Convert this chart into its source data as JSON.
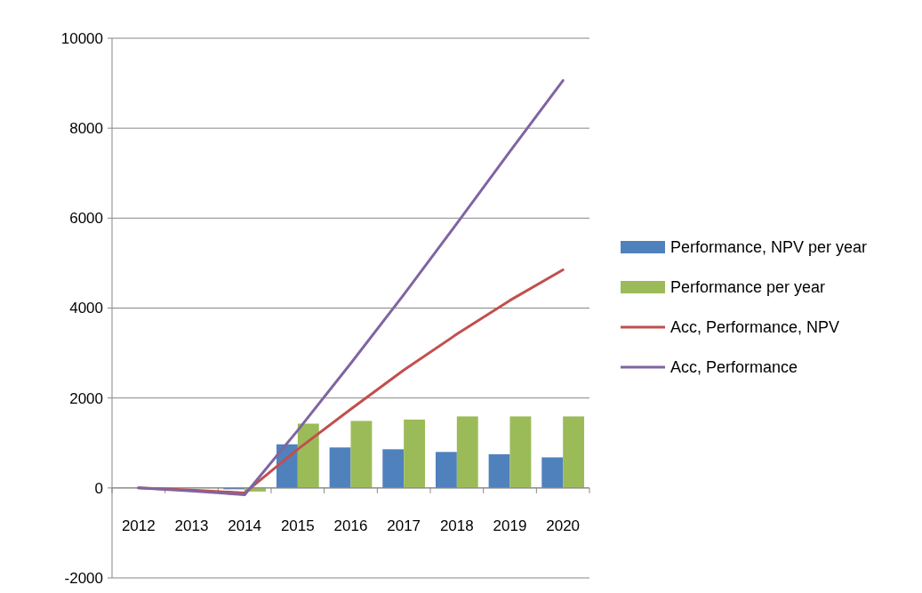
{
  "chart_data": {
    "type": "bar",
    "categories": [
      "2012",
      "2013",
      "2014",
      "2015",
      "2016",
      "2017",
      "2018",
      "2019",
      "2020"
    ],
    "series": [
      {
        "name": "Performance, NPV per year",
        "color": "#4f81bd",
        "values": [
          0,
          null,
          -30,
          970,
          900,
          860,
          800,
          750,
          680
        ]
      },
      {
        "name": "Performance per year",
        "color": "#9bbb59",
        "values": [
          0,
          null,
          -80,
          1430,
          1490,
          1520,
          1590,
          1590,
          1590
        ]
      },
      {
        "name": "Acc, Performance, NPV",
        "type": "line",
        "color": "#c0504d",
        "values": [
          0,
          -50,
          -110,
          860,
          1750,
          2620,
          3420,
          4170,
          4850
        ]
      },
      {
        "name": "Acc, Performance",
        "type": "line",
        "color": "#8064a2",
        "values": [
          0,
          -70,
          -150,
          1280,
          2770,
          4300,
          5880,
          7480,
          9060
        ]
      }
    ],
    "ylim": [
      -2000,
      10000
    ],
    "yticks": [
      -2000,
      0,
      2000,
      4000,
      6000,
      8000,
      10000
    ],
    "grid": "y",
    "legend": "right",
    "marker": "none"
  }
}
